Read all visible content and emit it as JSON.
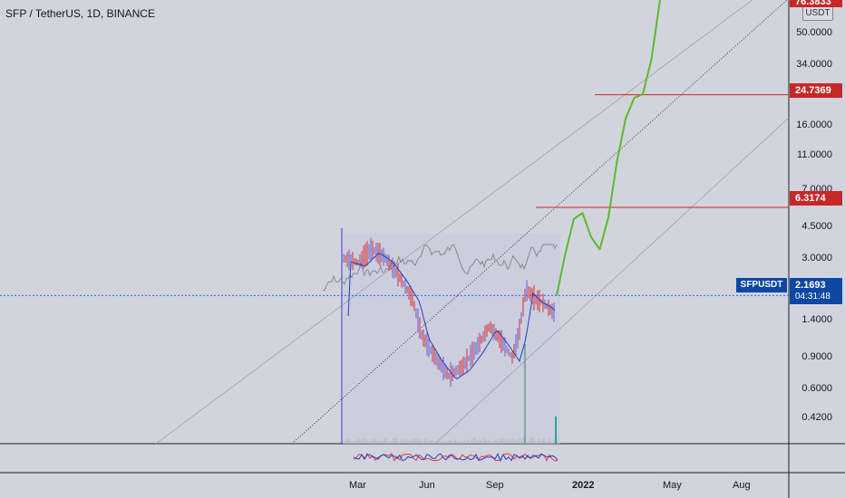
{
  "header": {
    "title": "SFP / TetherUS, 1D, BINANCE",
    "currency": "USDT"
  },
  "price_axis": {
    "ticks": [
      "50.0000",
      "34.0000",
      "16.0000",
      "11.0000",
      "7.0000",
      "4.5000",
      "3.0000",
      "1.4000",
      "0.9000",
      "0.6000",
      "0.4200"
    ]
  },
  "tags": {
    "top": "76.3833",
    "level_high": "24.7369",
    "level_low": "6.3174",
    "current": "2.1693",
    "countdown": "04:31:48",
    "symbol": "SFPUSDT"
  },
  "time_axis": {
    "labels": [
      "Mar",
      "Jun",
      "Sep",
      "2022",
      "May",
      "Aug"
    ]
  },
  "colors": {
    "background": "#d1d4dc",
    "projection": "#5cb82e",
    "level_line": "#c62828",
    "price_candles": "#d32f2f",
    "moving_average": "#1e40c8",
    "comparison_line": "#888888"
  },
  "chart_data": {
    "type": "line",
    "scale": "log",
    "ylim": [
      0.36,
      78
    ],
    "x_labels": [
      "Mar",
      "Jun",
      "Sep",
      "2022",
      "May",
      "Aug"
    ],
    "horizontal_levels": [
      24.7369,
      6.3174
    ],
    "current_price": 2.1693,
    "projection": {
      "color": "#5cb82e",
      "points": [
        [
          0,
          2.17
        ],
        [
          1,
          3.6
        ],
        [
          2,
          5.5
        ],
        [
          3,
          5.9
        ],
        [
          4,
          4.4
        ],
        [
          5,
          3.8
        ],
        [
          6,
          5.6
        ],
        [
          7,
          11.0
        ],
        [
          8,
          18.5
        ],
        [
          9,
          23.8
        ],
        [
          10,
          24.9
        ],
        [
          11,
          38
        ],
        [
          12,
          78
        ]
      ]
    }
  }
}
